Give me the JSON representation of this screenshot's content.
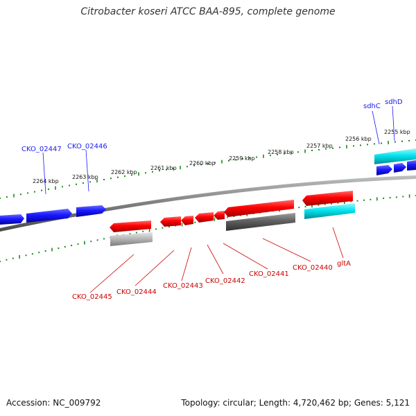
{
  "title": "Citrobacter koseri ATCC BAA-895, complete genome",
  "footer": {
    "accession": "Accession: NC_009792",
    "stats": "Topology: circular; Length: 4,720,462 bp; Genes: 5,121"
  },
  "colors": {
    "forward_gene": "#1a1aff",
    "reverse_gene": "#ff0000",
    "reverse_gene_highlight": "#00e5f0",
    "rna_feature": "#606060",
    "pseudo_feature": "#b8b8b8",
    "tick": "#1a8a1a",
    "backbone": "#7f7f7f",
    "forward_label": "#1a1aee",
    "reverse_label": "#cc0000"
  },
  "kbp_ticks": [
    "2264 kbp",
    "2263 kbp",
    "2262 kbp",
    "2261 kbp",
    "2260 kbp",
    "2259 kbp",
    "2258 kbp",
    "2257 kbp",
    "2256 kbp",
    "2255 kbp"
  ],
  "forward_genes": [
    "CKO_02447",
    "CKO_02446",
    "sdhC",
    "sdhD"
  ],
  "reverse_genes": [
    "CKO_02445",
    "CKO_02444",
    "CKO_02443",
    "CKO_02442",
    "CKO_02441",
    "CKO_02440",
    "gltA"
  ]
}
